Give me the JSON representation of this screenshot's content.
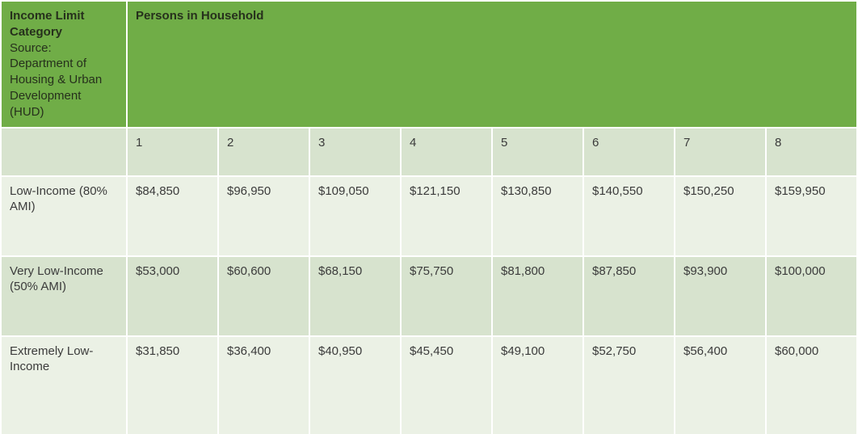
{
  "table": {
    "corner_header": {
      "title": "Income Limit Category",
      "subtitle": "Source: Department of Housing & Urban Development (HUD)"
    },
    "group_header": "Persons in Household",
    "column_headers": [
      "1",
      "2",
      "3",
      "4",
      "5",
      "6",
      "7",
      "8"
    ],
    "rows": [
      {
        "label": "Low-Income (80% AMI)",
        "values": [
          "$84,850",
          "$96,950",
          "$109,050",
          "$121,150",
          "$130,850",
          "$140,550",
          "$150,250",
          "$159,950"
        ]
      },
      {
        "label": "Very Low-Income (50% AMI)",
        "values": [
          "$53,000",
          "$60,600",
          "$68,150",
          "$75,750",
          "$81,800",
          "$87,850",
          "$93,900",
          "$100,000"
        ]
      },
      {
        "label": "Extremely Low-Income",
        "values": [
          "$31,850",
          "$36,400",
          "$40,950",
          "$45,450",
          "$49,100",
          "$52,750",
          "$56,400",
          "$60,000"
        ]
      }
    ],
    "colors": {
      "header_green": "#70AD47",
      "band_dark": "#D7E3CE",
      "band_light": "#EBF1E5",
      "header_text": "#26301C",
      "body_text": "#3B3B3B",
      "grid_line": "#FFFFFF"
    }
  }
}
